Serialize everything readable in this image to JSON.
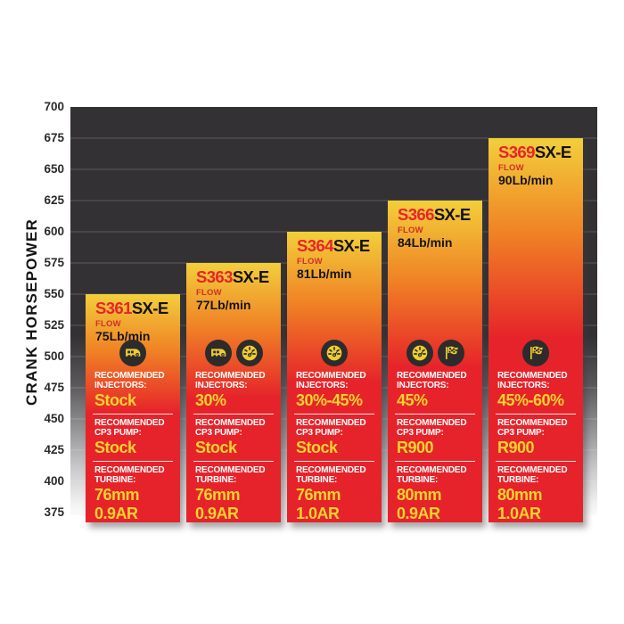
{
  "chart_data": {
    "type": "bar",
    "title": "",
    "ylabel": "CRANK HORSEPOWER",
    "ylim": [
      375,
      700
    ],
    "ytick_interval": 25,
    "yticks": [
      700,
      675,
      650,
      625,
      600,
      575,
      550,
      525,
      500,
      475,
      450,
      425,
      400,
      375
    ],
    "grid": "on",
    "legend": "none",
    "categories": [
      "S361SX-E",
      "S363SX-E",
      "S364SX-E",
      "S366SX-E",
      "S369SX-E"
    ],
    "values": [
      550,
      575,
      600,
      625,
      675
    ],
    "bars": [
      {
        "name": "S361SX-E",
        "model_prefix": "S361",
        "model_suffix": "SX-E",
        "flow_label": "FLOW",
        "flow_value": "75Lb/min",
        "top_hp": 550,
        "icons": [
          "rv-icon"
        ],
        "sections": [
          {
            "label": [
              "RECOMMENDED",
              "INJECTORS:"
            ],
            "values": [
              "Stock"
            ]
          },
          {
            "label": [
              "RECOMMENDED",
              "CP3 PUMP:"
            ],
            "values": [
              "Stock"
            ]
          },
          {
            "label": [
              "RECOMMENDED",
              "TURBINE:"
            ],
            "values": [
              "76mm",
              "0.9AR"
            ]
          }
        ]
      },
      {
        "name": "S363SX-E",
        "model_prefix": "S363",
        "model_suffix": "SX-E",
        "flow_label": "FLOW",
        "flow_value": "77Lb/min",
        "top_hp": 575,
        "icons": [
          "rv-icon",
          "gauge-icon"
        ],
        "sections": [
          {
            "label": [
              "RECOMMENDED",
              "INJECTORS:"
            ],
            "values": [
              "30%"
            ]
          },
          {
            "label": [
              "RECOMMENDED",
              "CP3 PUMP:"
            ],
            "values": [
              "Stock"
            ]
          },
          {
            "label": [
              "RECOMMENDED",
              "TURBINE:"
            ],
            "values": [
              "76mm",
              "0.9AR"
            ]
          }
        ]
      },
      {
        "name": "S364SX-E",
        "model_prefix": "S364",
        "model_suffix": "SX-E",
        "flow_label": "FLOW",
        "flow_value": "81Lb/min",
        "top_hp": 600,
        "icons": [
          "gauge-icon"
        ],
        "sections": [
          {
            "label": [
              "RECOMMENDED",
              "INJECTORS:"
            ],
            "values": [
              "30%-45%"
            ]
          },
          {
            "label": [
              "RECOMMENDED",
              "CP3 PUMP:"
            ],
            "values": [
              "Stock"
            ]
          },
          {
            "label": [
              "RECOMMENDED",
              "TURBINE:"
            ],
            "values": [
              "76mm",
              "1.0AR"
            ]
          }
        ]
      },
      {
        "name": "S366SX-E",
        "model_prefix": "S366",
        "model_suffix": "SX-E",
        "flow_label": "FLOW",
        "flow_value": "84Lb/min",
        "top_hp": 625,
        "icons": [
          "gauge-icon",
          "flag-icon"
        ],
        "sections": [
          {
            "label": [
              "RECOMMENDED",
              "INJECTORS:"
            ],
            "values": [
              "45%"
            ]
          },
          {
            "label": [
              "RECOMMENDED",
              "CP3 PUMP:"
            ],
            "values": [
              "R900"
            ]
          },
          {
            "label": [
              "RECOMMENDED",
              "TURBINE:"
            ],
            "values": [
              "80mm",
              "0.9AR"
            ]
          }
        ]
      },
      {
        "name": "S369SX-E",
        "model_prefix": "S369",
        "model_suffix": "SX-E",
        "flow_label": "FLOW",
        "flow_value": "90Lb/min",
        "top_hp": 675,
        "icons": [
          "flag-icon"
        ],
        "sections": [
          {
            "label": [
              "RECOMMENDED",
              "INJECTORS:"
            ],
            "values": [
              "45%-60%"
            ]
          },
          {
            "label": [
              "RECOMMENDED",
              "CP3 PUMP:"
            ],
            "values": [
              "R900"
            ]
          },
          {
            "label": [
              "RECOMMENDED",
              "TURBINE:"
            ],
            "values": [
              "80mm",
              "1.0AR"
            ]
          }
        ]
      }
    ],
    "colors": {
      "bar_gradient_top": "#f2cf3b",
      "bar_gradient_mid": "#f08125",
      "bar_red": "#e6232a",
      "title_red": "#e8232b",
      "title_black": "#141213",
      "flow_label_red": "#cf3127",
      "value_yellow": "#f6d32f",
      "label_white": "#ffffff",
      "plot_dark": "#343134",
      "icon_circle_dark": "#2d2b2c",
      "icon_yellow": "#eecd2f"
    }
  }
}
